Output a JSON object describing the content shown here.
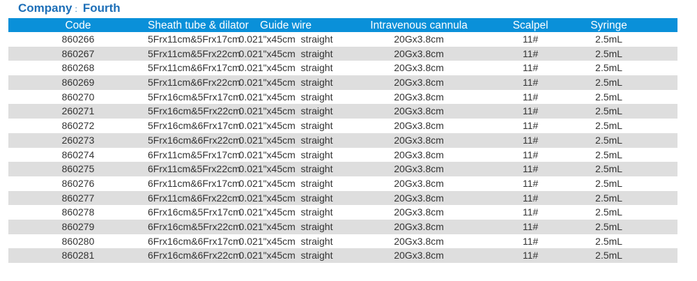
{
  "header": {
    "company_label": "Company",
    "separator": ":",
    "company_name": "Fourth"
  },
  "colors": {
    "header_bg": "#0a90d9",
    "title": "#1d6fb8",
    "alt_row": "#dedede"
  },
  "table": {
    "columns": [
      "Code",
      "Sheath tube & dilator",
      "Guide wire",
      "Intravenous cannula",
      "Scalpel",
      "Syringe"
    ],
    "rows": [
      [
        "860266",
        "5Frx11cm&5Frx17cm",
        "0.021\"x45cm  straight",
        "20Gx3.8cm",
        "11#",
        "2.5mL"
      ],
      [
        "860267",
        "5Frx11cm&5Frx22cm",
        "0.021\"x45cm  straight",
        "20Gx3.8cm",
        "11#",
        "2.5mL"
      ],
      [
        "860268",
        "5Frx11cm&6Frx17cm",
        "0.021\"x45cm  straight",
        "20Gx3.8cm",
        "11#",
        "2.5mL"
      ],
      [
        "860269",
        "5Frx11cm&6Frx22cm",
        "0.021\"x45cm  straight",
        "20Gx3.8cm",
        "11#",
        "2.5mL"
      ],
      [
        "860270",
        "5Frx16cm&5Frx17cm",
        "0.021\"x45cm  straight",
        "20Gx3.8cm",
        "11#",
        "2.5mL"
      ],
      [
        "260271",
        "5Frx16cm&5Frx22cm",
        "0.021\"x45cm  straight",
        "20Gx3.8cm",
        "11#",
        "2.5mL"
      ],
      [
        "860272",
        "5Frx16cm&6Frx17cm",
        "0.021\"x45cm  straight",
        "20Gx3.8cm",
        "11#",
        "2.5mL"
      ],
      [
        "260273",
        "5Frx16cm&6Frx22cm",
        "0.021\"x45cm  straight",
        "20Gx3.8cm",
        "11#",
        "2.5mL"
      ],
      [
        "860274",
        "6Frx11cm&5Frx17cm",
        "0.021\"x45cm  straight",
        "20Gx3.8cm",
        "11#",
        "2.5mL"
      ],
      [
        "860275",
        "6Frx11cm&5Frx22cm",
        "0.021\"x45cm  straight",
        "20Gx3.8cm",
        "11#",
        "2.5mL"
      ],
      [
        "860276",
        "6Frx11cm&6Frx17cm",
        "0.021\"x45cm  straight",
        "20Gx3.8cm",
        "11#",
        "2.5mL"
      ],
      [
        "860277",
        "6Frx11cm&6Frx22cm",
        "0.021\"x45cm  straight",
        "20Gx3.8cm",
        "11#",
        "2.5mL"
      ],
      [
        "860278",
        "6Frx16cm&5Frx17cm",
        "0.021\"x45cm  straight",
        "20Gx3.8cm",
        "11#",
        "2.5mL"
      ],
      [
        "860279",
        "6Frx16cm&5Frx22cm",
        "0.021\"x45cm  straight",
        "20Gx3.8cm",
        "11#",
        "2.5mL"
      ],
      [
        "860280",
        "6Frx16cm&6Frx17cm",
        "0.021\"x45cm  straight",
        "20Gx3.8cm",
        "11#",
        "2.5mL"
      ],
      [
        "860281",
        "6Frx16cm&6Frx22cm",
        "0.021\"x45cm  straight",
        "20Gx3.8cm",
        "11#",
        "2.5mL"
      ]
    ]
  }
}
